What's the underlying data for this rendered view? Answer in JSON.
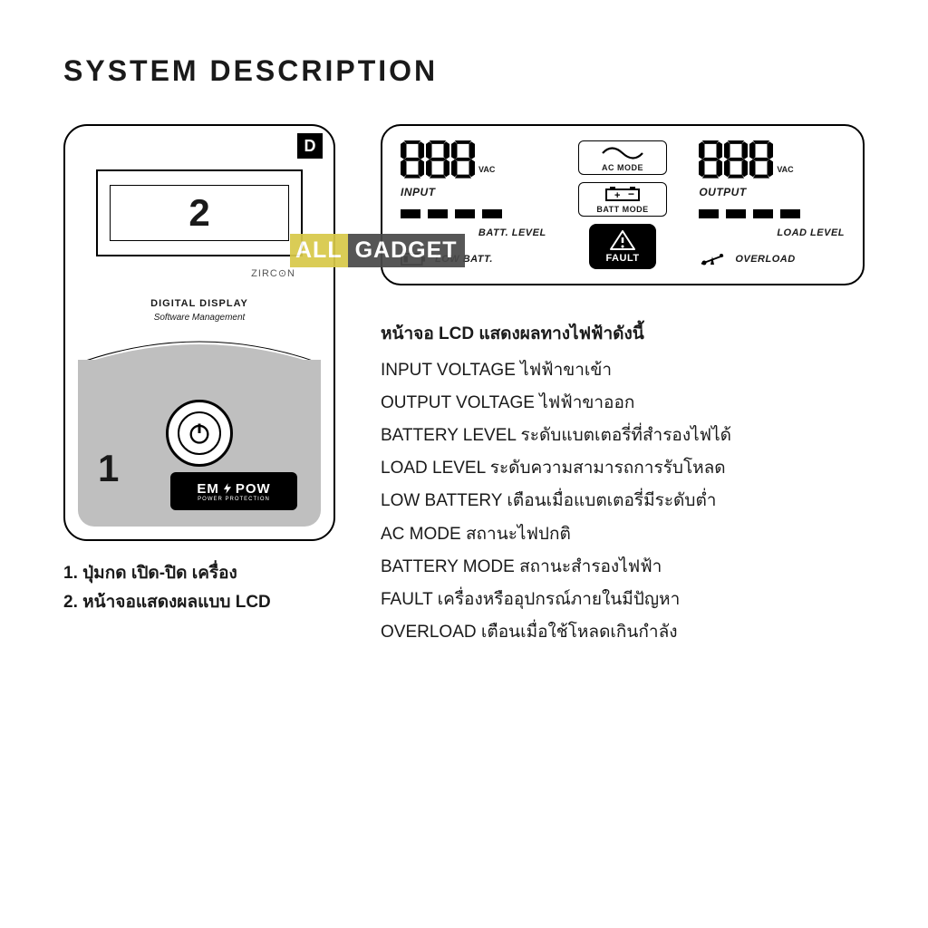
{
  "title": "SYSTEM DESCRIPTION",
  "device": {
    "badge": "D",
    "lcd_callout": "2",
    "zircon": "ZIRC⊙N",
    "digital_display": "DIGITAL DISPLAY",
    "software_mgmt": "Software Management",
    "one_label": "1",
    "brand": "EM",
    "brand2": "POW",
    "brand_sub": "POWER PROTECTION"
  },
  "left_captions": {
    "l1": "1. ปุ่มกด เปิด-ปิด เครื่อง",
    "l2": "2. หน้าจอแสดงผลแบบ LCD"
  },
  "lcd": {
    "seg_unit": "VAC",
    "input": "INPUT",
    "output": "OUTPUT",
    "batt_level": "BATT. LEVEL",
    "load_level": "LOAD LEVEL",
    "low_batt": "LOW BATT.",
    "overload": "OVERLOAD",
    "ac_mode": "AC MODE",
    "batt_mode": "BATT MODE",
    "fault": "FAULT",
    "bars": 4
  },
  "desc": {
    "hd": "หน้าจอ LCD แสดงผลทางไฟฟ้าดังนี้",
    "rows": [
      "INPUT VOLTAGE ไฟฟ้าขาเข้า",
      "OUTPUT VOLTAGE ไฟฟ้าขาออก",
      "BATTERY LEVEL ระดับแบตเตอรี่ที่สำรองไฟได้",
      "LOAD LEVEL ระดับความสามารถการรับโหลด",
      "LOW BATTERY เตือนเมื่อแบตเตอรี่มีระดับต่ำ",
      "AC MODE สถานะไฟปกติ",
      "BATTERY MODE สถานะสำรองไฟฟ้า",
      "FAULT เครื่องหรืออุปกรณ์ภายในมีปัญหา",
      "OVERLOAD เตือนเมื่อใช้โหลดเกินกำลัง"
    ]
  },
  "watermark": {
    "a": "ALL",
    "b": "GADGET"
  },
  "colors": {
    "black": "#000000",
    "grey_panel": "#bfbfbf",
    "wm_yellow": "#d8c94a",
    "wm_grey": "#4a4a4a"
  }
}
